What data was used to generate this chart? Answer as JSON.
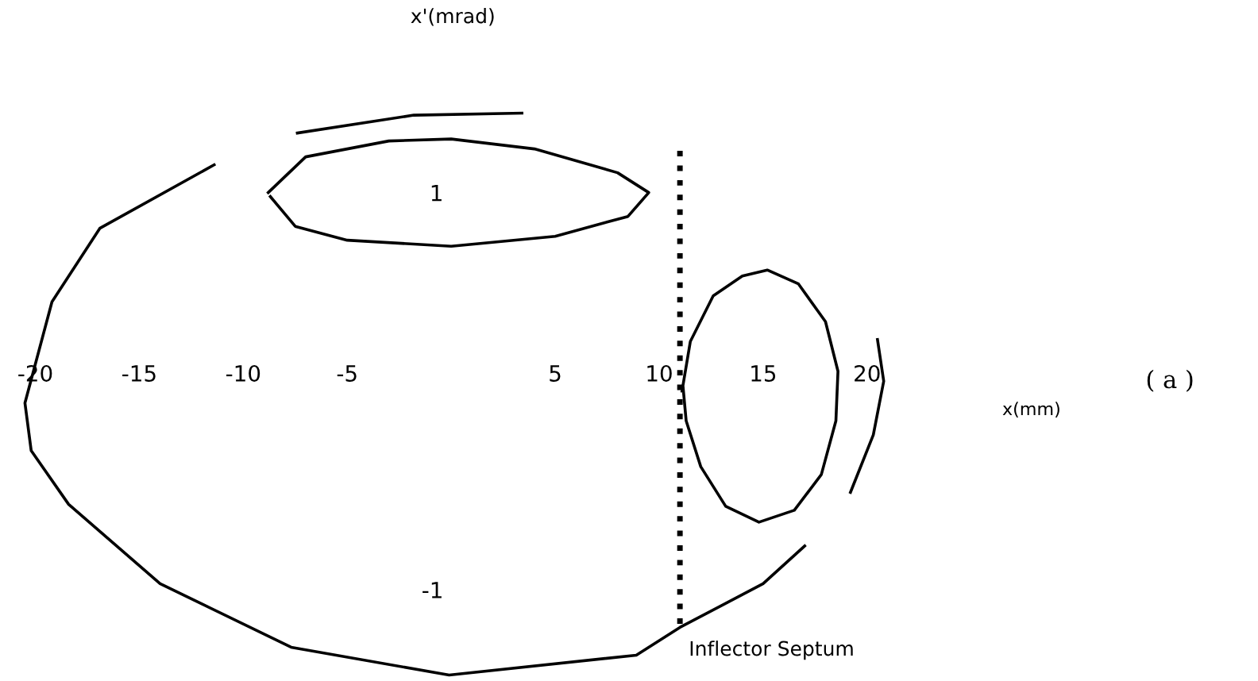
{
  "chart_data": {
    "type": "line",
    "xlabel": "x(mm)",
    "ylabel": "x'(mrad)",
    "annotations": [
      "( a )",
      {
        "text": "Inflector Septum",
        "x": 11.0,
        "y": -1.19
      }
    ],
    "xlim": [
      -21.7,
      38.8
    ],
    "ylim": [
      -1.46,
      1.97
    ],
    "xticks": [
      -20,
      -15,
      -10,
      -5,
      5,
      10,
      15,
      20
    ],
    "yticks": [
      -1,
      1
    ],
    "grid": false,
    "legend": false,
    "marker": "none",
    "line_style": "solid",
    "series": [
      {
        "color": "#000000",
        "x": [
          -7.4,
          -1.8,
          3.4
        ],
        "values": [
          1.3,
          1.39,
          1.4
        ]
      },
      {
        "color": "#000000",
        "x": [
          20.5,
          20.8,
          20.3,
          19.2
        ],
        "values": [
          0.26,
          0.05,
          -0.22,
          -0.51
        ]
      },
      {
        "color": "#000000",
        "x": [
          17.0,
          15.0,
          11.0,
          8.9,
          -0.1,
          -7.7,
          -14.0,
          -18.4,
          -20.2,
          -20.5,
          -19.2,
          -16.9,
          -11.4
        ],
        "values": [
          -0.78,
          -0.97,
          -1.19,
          -1.33,
          -1.43,
          -1.29,
          -0.97,
          -0.57,
          -0.3,
          -0.06,
          0.45,
          0.82,
          1.14
        ]
      },
      {
        "color": "#000000",
        "x": [
          -8.8,
          -7,
          -3,
          0,
          4,
          8,
          9.5,
          8.5,
          5,
          0,
          -5,
          -7.5,
          -8.7
        ],
        "values": [
          1.0,
          1.18,
          1.26,
          1.27,
          1.22,
          1.1,
          1.0,
          0.88,
          0.78,
          0.73,
          0.76,
          0.83,
          0.98
        ]
      },
      {
        "color": "#000000",
        "x": [
          11.1,
          11.5,
          12.6,
          14,
          15.2,
          16.7,
          18,
          18.6,
          18.5,
          17.8,
          16.5,
          14.8,
          13.2,
          12,
          11.3,
          11.15
        ],
        "values": [
          0,
          0.25,
          0.48,
          0.58,
          0.61,
          0.54,
          0.35,
          0.1,
          -0.15,
          -0.42,
          -0.6,
          -0.66,
          -0.58,
          -0.38,
          -0.15,
          0.02
        ]
      },
      {
        "color": "#000000",
        "line_style": "dotted",
        "x": [
          11.0,
          11.0
        ],
        "values": [
          1.21,
          -1.19
        ]
      }
    ]
  }
}
